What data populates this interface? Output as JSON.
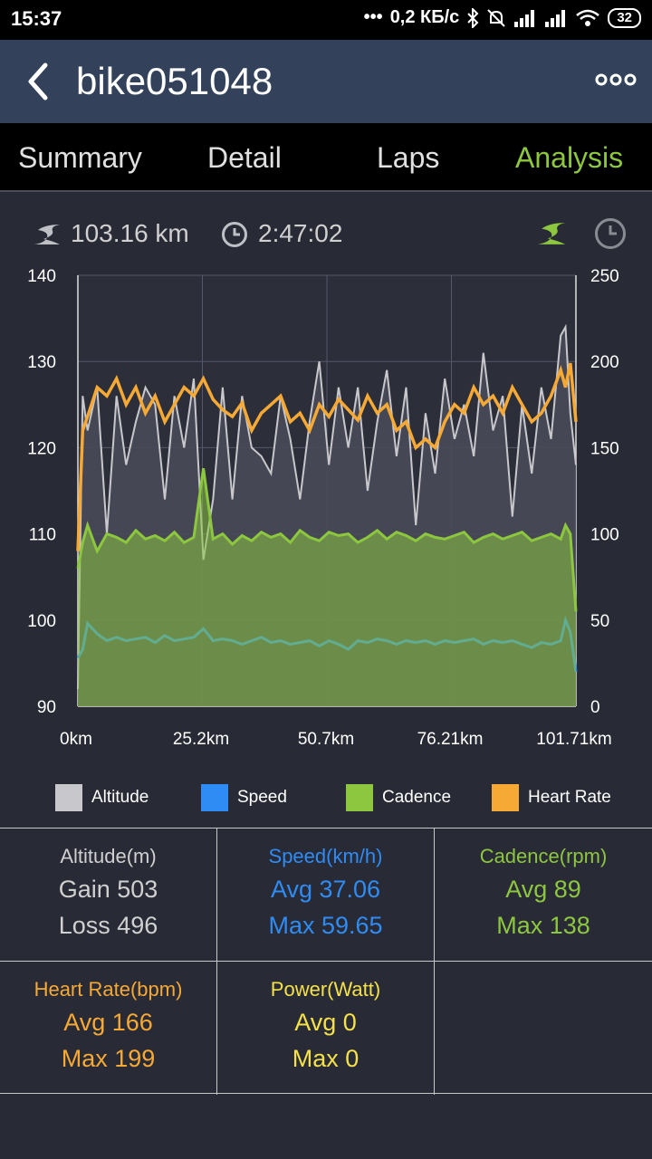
{
  "status": {
    "time": "15:37",
    "network_speed": "0,2 КБ/с",
    "battery": "32"
  },
  "header": {
    "title": "bike051048"
  },
  "tabs": [
    {
      "label": "Summary"
    },
    {
      "label": "Detail"
    },
    {
      "label": "Laps"
    },
    {
      "label": "Analysis"
    }
  ],
  "summary": {
    "distance": "103.16 km",
    "duration": "2:47:02"
  },
  "colors": {
    "altitude": "#c8c8cc",
    "speed": "#2f8cf5",
    "cadence": "#8dc63f",
    "heart_rate": "#f7a935",
    "power": "#f5e14a",
    "active_tab": "#8dc63f"
  },
  "chart_data": {
    "type": "line",
    "x_ticks": [
      "0km",
      "25.2km",
      "50.7km",
      "76.21km",
      "101.71km"
    ],
    "x_range": [
      0,
      103.16
    ],
    "left_axis": {
      "ticks": [
        "140",
        "130",
        "120",
        "110",
        "100",
        "90"
      ],
      "range": [
        90,
        140
      ]
    },
    "right_axis": {
      "ticks": [
        "250",
        "200",
        "150",
        "100",
        "50",
        "0"
      ],
      "range": [
        0,
        250
      ]
    },
    "legend": [
      "Altitude",
      "Speed",
      "Cadence",
      "Heart Rate"
    ],
    "series": [
      {
        "name": "Altitude",
        "axis": "left",
        "x": [
          0,
          1,
          2,
          4,
          6,
          8,
          10,
          12,
          14,
          16,
          18,
          20,
          22,
          24,
          26,
          28,
          30,
          32,
          34,
          36,
          38,
          40,
          42,
          44,
          46,
          48,
          50,
          52,
          54,
          56,
          58,
          60,
          62,
          64,
          66,
          68,
          70,
          72,
          74,
          76,
          78,
          80,
          82,
          84,
          86,
          88,
          90,
          92,
          94,
          96,
          98,
          100,
          101,
          102,
          103.16
        ],
        "values": [
          92,
          126,
          122,
          127,
          110,
          126,
          118,
          123,
          127,
          125,
          114,
          126,
          120,
          128,
          107,
          114,
          127,
          114,
          126,
          120,
          119,
          117,
          126,
          121,
          114,
          123,
          130,
          118,
          127,
          120,
          127,
          115,
          123,
          129,
          119,
          127,
          111,
          124,
          117,
          128,
          121,
          125,
          119,
          131,
          122,
          126,
          112,
          125,
          117,
          127,
          121,
          133,
          134,
          124,
          118
        ]
      },
      {
        "name": "Speed",
        "axis": "right",
        "x": [
          0,
          1,
          2,
          4,
          6,
          8,
          10,
          12,
          14,
          16,
          18,
          20,
          22,
          24,
          26,
          28,
          30,
          32,
          34,
          36,
          38,
          40,
          42,
          44,
          46,
          48,
          50,
          52,
          54,
          56,
          58,
          60,
          62,
          64,
          66,
          68,
          70,
          72,
          74,
          76,
          78,
          80,
          82,
          84,
          86,
          88,
          90,
          92,
          94,
          96,
          98,
          100,
          101,
          102,
          103.16
        ],
        "values": [
          28,
          33,
          48,
          42,
          38,
          40,
          38,
          39,
          40,
          37,
          41,
          38,
          39,
          40,
          45,
          38,
          39,
          38,
          36,
          38,
          40,
          37,
          38,
          36,
          37,
          38,
          35,
          38,
          36,
          33,
          38,
          37,
          39,
          38,
          36,
          38,
          37,
          38,
          36,
          38,
          37,
          38,
          39,
          36,
          38,
          37,
          38,
          36,
          34,
          37,
          36,
          38,
          50,
          43,
          20
        ]
      },
      {
        "name": "Cadence",
        "axis": "right",
        "x": [
          0,
          1,
          2,
          4,
          6,
          8,
          10,
          12,
          14,
          16,
          18,
          20,
          22,
          24,
          26,
          28,
          30,
          32,
          34,
          36,
          38,
          40,
          42,
          44,
          46,
          48,
          50,
          52,
          54,
          56,
          58,
          60,
          62,
          64,
          66,
          68,
          70,
          72,
          74,
          76,
          78,
          80,
          82,
          84,
          86,
          88,
          90,
          92,
          94,
          96,
          98,
          100,
          101,
          102,
          103.16
        ],
        "values": [
          80,
          95,
          105,
          90,
          100,
          98,
          95,
          102,
          97,
          99,
          96,
          101,
          95,
          98,
          138,
          97,
          100,
          94,
          99,
          96,
          101,
          98,
          100,
          95,
          102,
          98,
          96,
          101,
          99,
          100,
          95,
          98,
          102,
          97,
          101,
          99,
          96,
          100,
          98,
          97,
          99,
          101,
          95,
          98,
          100,
          97,
          99,
          101,
          96,
          98,
          100,
          97,
          105,
          100,
          55
        ]
      },
      {
        "name": "Heart Rate",
        "axis": "right",
        "x": [
          0,
          1,
          2,
          4,
          6,
          8,
          10,
          12,
          14,
          16,
          18,
          20,
          22,
          24,
          26,
          28,
          30,
          32,
          34,
          36,
          38,
          40,
          42,
          44,
          46,
          48,
          50,
          52,
          54,
          56,
          58,
          60,
          62,
          64,
          66,
          68,
          70,
          72,
          74,
          76,
          78,
          80,
          82,
          84,
          86,
          88,
          90,
          92,
          94,
          96,
          98,
          100,
          101,
          102,
          103.16
        ],
        "values": [
          90,
          160,
          168,
          185,
          180,
          190,
          175,
          185,
          170,
          180,
          165,
          175,
          185,
          180,
          190,
          178,
          172,
          168,
          176,
          160,
          170,
          175,
          180,
          165,
          170,
          160,
          175,
          168,
          178,
          172,
          166,
          180,
          170,
          175,
          160,
          165,
          150,
          155,
          150,
          165,
          175,
          170,
          185,
          175,
          180,
          170,
          185,
          175,
          165,
          170,
          180,
          195,
          185,
          199,
          165
        ]
      }
    ]
  },
  "stats": {
    "altitude": {
      "title": "Altitude(m)",
      "line1": "Gain 503",
      "line2": "Loss 496"
    },
    "speed": {
      "title": "Speed(km/h)",
      "line1": "Avg 37.06",
      "line2": "Max 59.65"
    },
    "cadence": {
      "title": "Cadence(rpm)",
      "line1": "Avg 89",
      "line2": "Max 138"
    },
    "heart_rate": {
      "title": "Heart Rate(bpm)",
      "line1": "Avg 166",
      "line2": "Max 199"
    },
    "power": {
      "title": "Power(Watt)",
      "line1": "Avg 0",
      "line2": "Max 0"
    }
  }
}
